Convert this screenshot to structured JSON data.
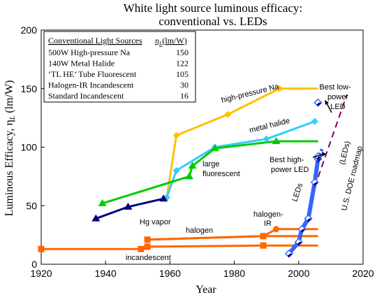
{
  "chart_data": {
    "type": "line",
    "title": "White light source luminous efficacy:",
    "subtitle": "conventional vs. LEDs",
    "xlabel": "Year",
    "ylabel": "Luminous Efficacy, η",
    "ylabel_sub": "L",
    "ylabel_unit": " (lm/W)",
    "xlim": [
      1920,
      2020
    ],
    "ylim": [
      0,
      200
    ],
    "xticks": [
      1920,
      1940,
      1960,
      1980,
      2000,
      2020
    ],
    "yticks": [
      0,
      50,
      100,
      150,
      200
    ],
    "grid": false,
    "colors": {
      "high_pressure_na": "#FFC000",
      "metal_halide": "#33CCFF",
      "fluorescent": "#00CC00",
      "hg_vapor": "#00007F",
      "halogen": "#FF6600",
      "led": "#3366FF",
      "doe": "#800060"
    },
    "series": [
      {
        "name": "high-pressure Na",
        "marker": "diamond",
        "color": "#FFC000",
        "points": [
          [
            1959,
            57
          ],
          [
            1962,
            110
          ],
          [
            1978,
            128
          ],
          [
            1994,
            150
          ],
          [
            2006,
            150
          ]
        ],
        "flat_from": 3
      },
      {
        "name": "metal halide",
        "marker": "diamond",
        "color": "#33CCFF",
        "points": [
          [
            1959,
            57
          ],
          [
            1962,
            80
          ],
          [
            1974,
            100
          ],
          [
            1990,
            107
          ],
          [
            2005,
            122
          ]
        ]
      },
      {
        "name": "large fluorescent",
        "marker": "triangle",
        "color": "#00CC00",
        "points": [
          [
            1939,
            52
          ],
          [
            1966,
            75
          ],
          [
            1967,
            84
          ],
          [
            1974,
            99
          ],
          [
            1993,
            105
          ],
          [
            2006,
            105
          ]
        ]
      },
      {
        "name": "Hg vapor",
        "marker": "triangle",
        "color": "#00007F",
        "points": [
          [
            1937,
            39
          ],
          [
            1947,
            49
          ],
          [
            1958,
            56
          ]
        ]
      },
      {
        "name": "halogen-IR",
        "marker": "circle",
        "color": "#FF6600",
        "points": [
          [
            1953,
            21
          ],
          [
            1989,
            24
          ],
          [
            1993,
            30
          ],
          [
            2006,
            30
          ]
        ]
      },
      {
        "name": "halogen",
        "marker": "square",
        "color": "#FF6600",
        "points": [
          [
            1953,
            21
          ],
          [
            1989,
            24
          ],
          [
            2006,
            24
          ]
        ]
      },
      {
        "name": "incandescent",
        "marker": "square",
        "color": "#FF6600",
        "points": [
          [
            1920,
            13
          ],
          [
            1951,
            13
          ],
          [
            1953,
            15
          ],
          [
            1989,
            16
          ],
          [
            2006,
            16
          ]
        ]
      },
      {
        "name": "LEDs",
        "marker": "diamond-open",
        "color": "#3366FF",
        "points": [
          [
            1997,
            9
          ],
          [
            2000,
            19
          ],
          [
            2001,
            30
          ],
          [
            2003,
            39
          ],
          [
            2005,
            70
          ],
          [
            2006,
            90
          ]
        ]
      },
      {
        "name": "Best low-power LED",
        "marker": "diamond-open",
        "color": "#3366FF",
        "points": [
          [
            2006,
            138
          ]
        ]
      },
      {
        "name": "Best high-power LED",
        "marker": "diamond-open",
        "color": "#3366FF",
        "points": [
          [
            2006,
            92
          ]
        ]
      },
      {
        "name": "U.S. DOE roadmap (LEDs)",
        "marker": "none",
        "color": "#800060",
        "points": [
          [
            2005,
            66
          ],
          [
            2015,
            145
          ]
        ]
      }
    ],
    "legend_table": {
      "header_source": "Conventional Light Sources",
      "header_eta": "η",
      "header_eta_sub": "L",
      "header_eta_unit": "(lm/W)",
      "rows": [
        {
          "source": "500W High-pressure Na",
          "value": "150"
        },
        {
          "source": "140W Metal Halide",
          "value": "122"
        },
        {
          "source": "‘TL HE’ Tube Fluorescent",
          "value": "105"
        },
        {
          "source": "Halogen-IR Incandescent",
          "value": "30"
        },
        {
          "source": "Standard Incandescent",
          "value": "16"
        }
      ]
    },
    "annotations": {
      "high_pressure_na": "high-pressure Na",
      "metal_halide": "metal halide",
      "large_fluorescent_1": "large",
      "large_fluorescent_2": "fluorescent",
      "hg_vapor": "Hg vapor",
      "halogen": "halogen",
      "halogen_ir_1": "halogen-",
      "halogen_ir_2": "IR",
      "incandescent": "incandescent",
      "leds": "LEDs",
      "best_low_1": "Best low-",
      "best_low_2": "power",
      "best_low_3": "LED",
      "best_high_1": "Best high-",
      "best_high_2": "power LED",
      "doe_1": "U.S. DOE roadmap",
      "doe_2": "(LEDs)"
    }
  }
}
